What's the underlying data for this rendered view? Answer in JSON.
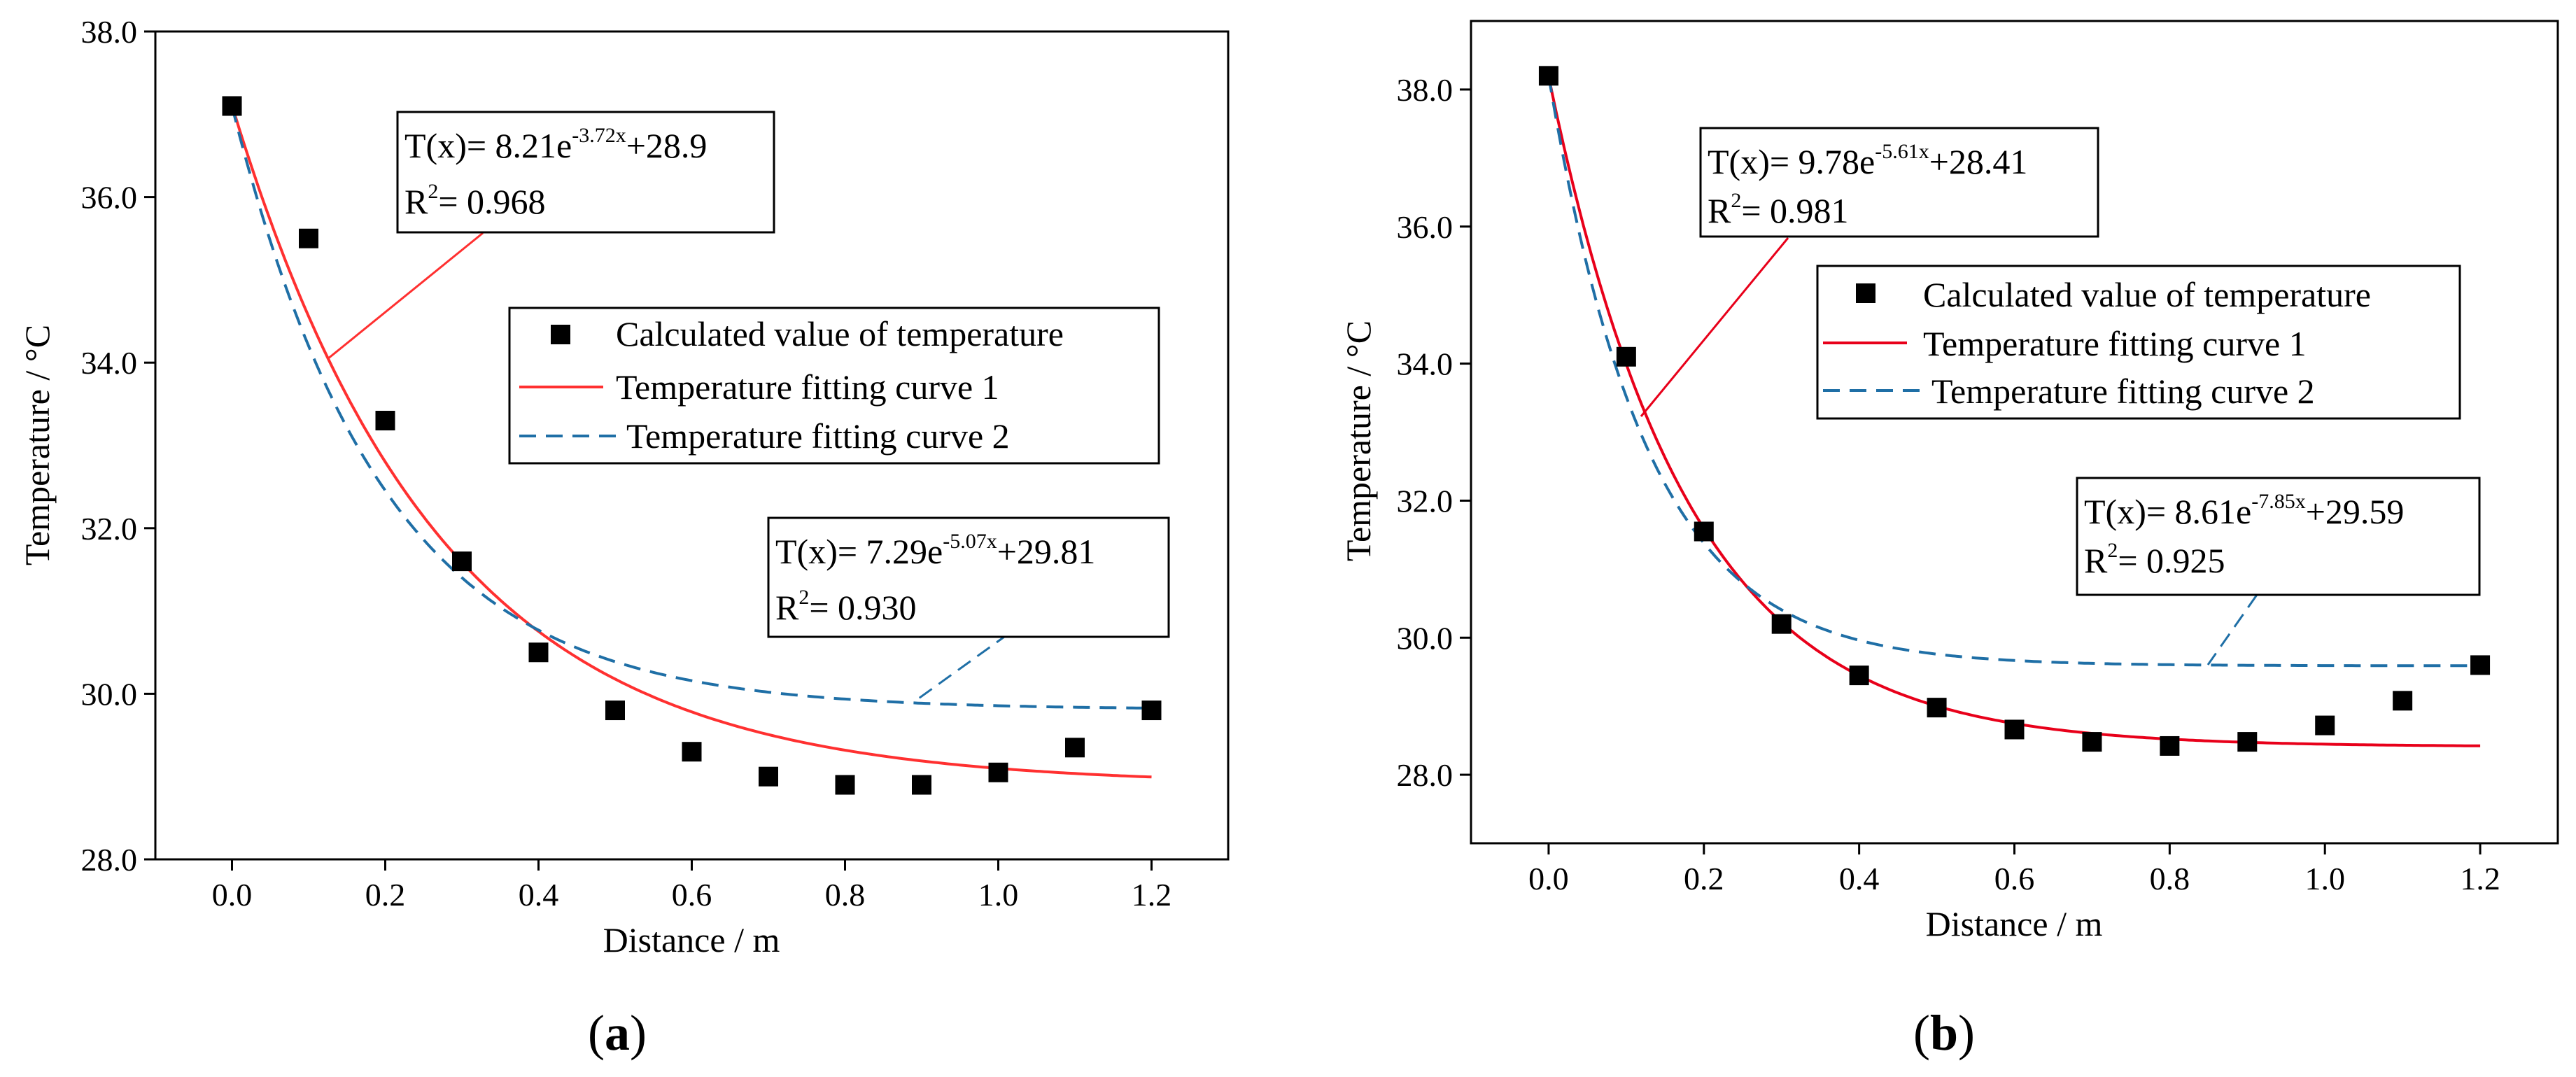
{
  "colors": {
    "marker": "#000000",
    "curve1": "#ff3030",
    "curve1_b": "#e8001a",
    "curve2": "#1f6fa6"
  },
  "chart_data": [
    {
      "type": "scatter",
      "panel_label": "a",
      "xlabel": "Distance / m",
      "ylabel": "Temperature / °C",
      "xlim": [
        -0.1,
        1.3
      ],
      "ylim": [
        28.0,
        38.0
      ],
      "x_ticks": [
        "0.0",
        "0.2",
        "0.4",
        "0.6",
        "0.8",
        "1.0",
        "1.2"
      ],
      "y_ticks": [
        "28.0",
        "30.0",
        "32.0",
        "34.0",
        "36.0",
        "38.0"
      ],
      "legend": {
        "points": "Calculated value of temperature",
        "curve1": "Temperature fitting curve 1",
        "curve2": "Temperature fitting curve 2"
      },
      "series": [
        {
          "name": "Calculated value of temperature",
          "kind": "points",
          "x": [
            0.0,
            0.1,
            0.2,
            0.3,
            0.4,
            0.5,
            0.6,
            0.7,
            0.8,
            0.9,
            1.0,
            1.1,
            1.2
          ],
          "values": [
            37.1,
            35.5,
            33.3,
            31.6,
            30.5,
            29.8,
            29.3,
            29.0,
            28.9,
            28.9,
            29.05,
            29.35,
            29.8
          ]
        },
        {
          "name": "Temperature fitting curve 1",
          "kind": "fit",
          "a": 8.21,
          "b": 3.72,
          "c": 28.9
        },
        {
          "name": "Temperature fitting curve 2",
          "kind": "fit",
          "a": 7.29,
          "b": 5.07,
          "c": 29.81
        }
      ],
      "annotations": [
        {
          "fn": "T(x)= 8.21e",
          "exp": "-3.72x",
          "tail": "+28.9",
          "r2_prefix": "R",
          "r2_sup": "2",
          "r2_value": "= 0.968"
        },
        {
          "fn": "T(x)= 7.29e",
          "exp": "-5.07x",
          "tail": "+29.81",
          "r2_prefix": "R",
          "r2_sup": "2",
          "r2_value": "= 0.930"
        }
      ]
    },
    {
      "type": "scatter",
      "panel_label": "b",
      "xlabel": "Distance / m",
      "ylabel": "Temperature / °C",
      "xlim": [
        -0.1,
        1.3
      ],
      "ylim": [
        27.0,
        39.0
      ],
      "x_ticks": [
        "0.0",
        "0.2",
        "0.4",
        "0.6",
        "0.8",
        "1.0",
        "1.2"
      ],
      "y_ticks": [
        "28.0",
        "30.0",
        "32.0",
        "34.0",
        "36.0",
        "38.0"
      ],
      "legend": {
        "points": "Calculated value of temperature",
        "curve1": "Temperature fitting curve 1",
        "curve2": "Temperature fitting curve 2"
      },
      "series": [
        {
          "name": "Calculated value of temperature",
          "kind": "points",
          "x": [
            0.0,
            0.1,
            0.2,
            0.3,
            0.4,
            0.5,
            0.6,
            0.7,
            0.8,
            0.9,
            1.0,
            1.1,
            1.2
          ],
          "values": [
            38.2,
            34.1,
            31.55,
            30.2,
            29.45,
            28.98,
            28.66,
            28.48,
            28.42,
            28.48,
            28.72,
            29.08,
            29.6
          ]
        },
        {
          "name": "Temperature fitting curve 1",
          "kind": "fit",
          "a": 9.78,
          "b": 5.61,
          "c": 28.41
        },
        {
          "name": "Temperature fitting curve 2",
          "kind": "fit",
          "a": 8.61,
          "b": 7.85,
          "c": 29.59
        }
      ],
      "annotations": [
        {
          "fn": "T(x)= 9.78e",
          "exp": "-5.61x",
          "tail": "+28.41",
          "r2_prefix": "R",
          "r2_sup": "2",
          "r2_value": "= 0.981"
        },
        {
          "fn": "T(x)= 8.61e",
          "exp": "-7.85x",
          "tail": "+29.59",
          "r2_prefix": "R",
          "r2_sup": "2",
          "r2_value": "= 0.925"
        }
      ]
    }
  ]
}
